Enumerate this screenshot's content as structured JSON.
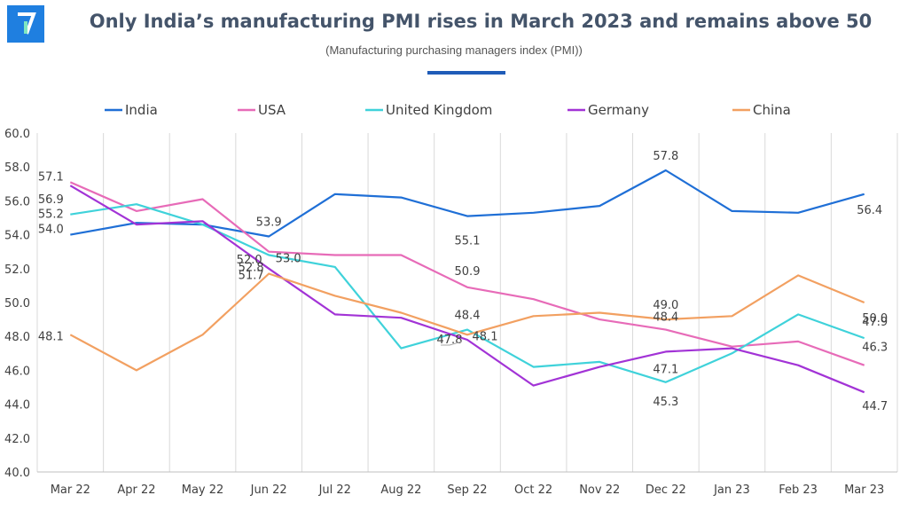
{
  "header": {
    "title": "Only India’s manufacturing PMI rises in March 2023 and remains above 50",
    "subtitle": "(Manufacturing purchasing managers index (PMI))",
    "logo_icon": "brand-logo-icon",
    "accent_color": "#1f5cb8"
  },
  "chart_data": {
    "type": "line",
    "title": "Only India’s manufacturing PMI rises in March 2023 and remains above 50",
    "subtitle": "(Manufacturing purchasing managers index (PMI))",
    "xlabel": "",
    "ylabel": "",
    "ylim": [
      40,
      60
    ],
    "ytick_step": 2,
    "ytick_labels": [
      "40.0",
      "42.0",
      "44.0",
      "46.0",
      "48.0",
      "50.0",
      "52.0",
      "54.0",
      "56.0",
      "58.0",
      "60.0"
    ],
    "grid": "vertical",
    "legend_position": "top",
    "categories": [
      "Mar 22",
      "Apr 22",
      "May 22",
      "Jun 22",
      "Jul 22",
      "Aug 22",
      "Sep 22",
      "Oct 22",
      "Nov 22",
      "Dec 22",
      "Jan 23",
      "Feb 23",
      "Mar 23"
    ],
    "series": [
      {
        "name": "India",
        "color": "#1f6fd6",
        "values": [
          54.0,
          54.7,
          54.6,
          53.9,
          56.4,
          56.2,
          55.1,
          55.3,
          55.7,
          57.8,
          55.4,
          55.3,
          56.4
        ],
        "labels": [
          {
            "i": 0,
            "text": "54.0"
          },
          {
            "i": 3,
            "text": "53.9"
          },
          {
            "i": 6,
            "text": "55.1"
          },
          {
            "i": 9,
            "text": "57.8"
          },
          {
            "i": 12,
            "text": "56.4"
          }
        ]
      },
      {
        "name": "USA",
        "color": "#e76bb8",
        "values": [
          57.1,
          55.4,
          56.1,
          53.0,
          52.8,
          52.8,
          50.9,
          50.2,
          49.0,
          48.4,
          47.4,
          47.7,
          46.3
        ],
        "labels": [
          {
            "i": 0,
            "text": "57.1"
          },
          {
            "i": 3,
            "text": "53.0"
          },
          {
            "i": 6,
            "text": "50.9"
          },
          {
            "i": 9,
            "text": "48.4"
          },
          {
            "i": 12,
            "text": "46.3"
          }
        ]
      },
      {
        "name": "United Kingdom",
        "color": "#3fd2da",
        "values": [
          55.2,
          55.8,
          54.6,
          52.8,
          52.1,
          47.3,
          48.4,
          46.2,
          46.5,
          45.3,
          47.0,
          49.3,
          47.9
        ],
        "labels": [
          {
            "i": 0,
            "text": "55.2"
          },
          {
            "i": 3,
            "text": "52.8"
          },
          {
            "i": 6,
            "text": "48.4"
          },
          {
            "i": 9,
            "text": "45.3"
          },
          {
            "i": 12,
            "text": "47.9"
          }
        ]
      },
      {
        "name": "Germany",
        "color": "#a233d6",
        "values": [
          56.9,
          54.6,
          54.8,
          52.0,
          49.3,
          49.1,
          47.8,
          45.1,
          46.2,
          47.1,
          47.3,
          46.3,
          44.7
        ],
        "labels": [
          {
            "i": 0,
            "text": "56.9"
          },
          {
            "i": 3,
            "text": "52.0"
          },
          {
            "i": 6,
            "text": "47.8"
          },
          {
            "i": 9,
            "text": "47.1"
          },
          {
            "i": 12,
            "text": "44.7"
          }
        ]
      },
      {
        "name": "China",
        "color": "#f2a061",
        "values": [
          48.1,
          46.0,
          48.1,
          51.7,
          50.4,
          49.4,
          48.1,
          49.2,
          49.4,
          49.0,
          49.2,
          51.6,
          50.0
        ],
        "labels": [
          {
            "i": 0,
            "text": "48.1"
          },
          {
            "i": 3,
            "text": "51.7"
          },
          {
            "i": 6,
            "text": "48.1"
          },
          {
            "i": 9,
            "text": "49.0"
          },
          {
            "i": 12,
            "text": "50.0"
          }
        ]
      }
    ]
  }
}
